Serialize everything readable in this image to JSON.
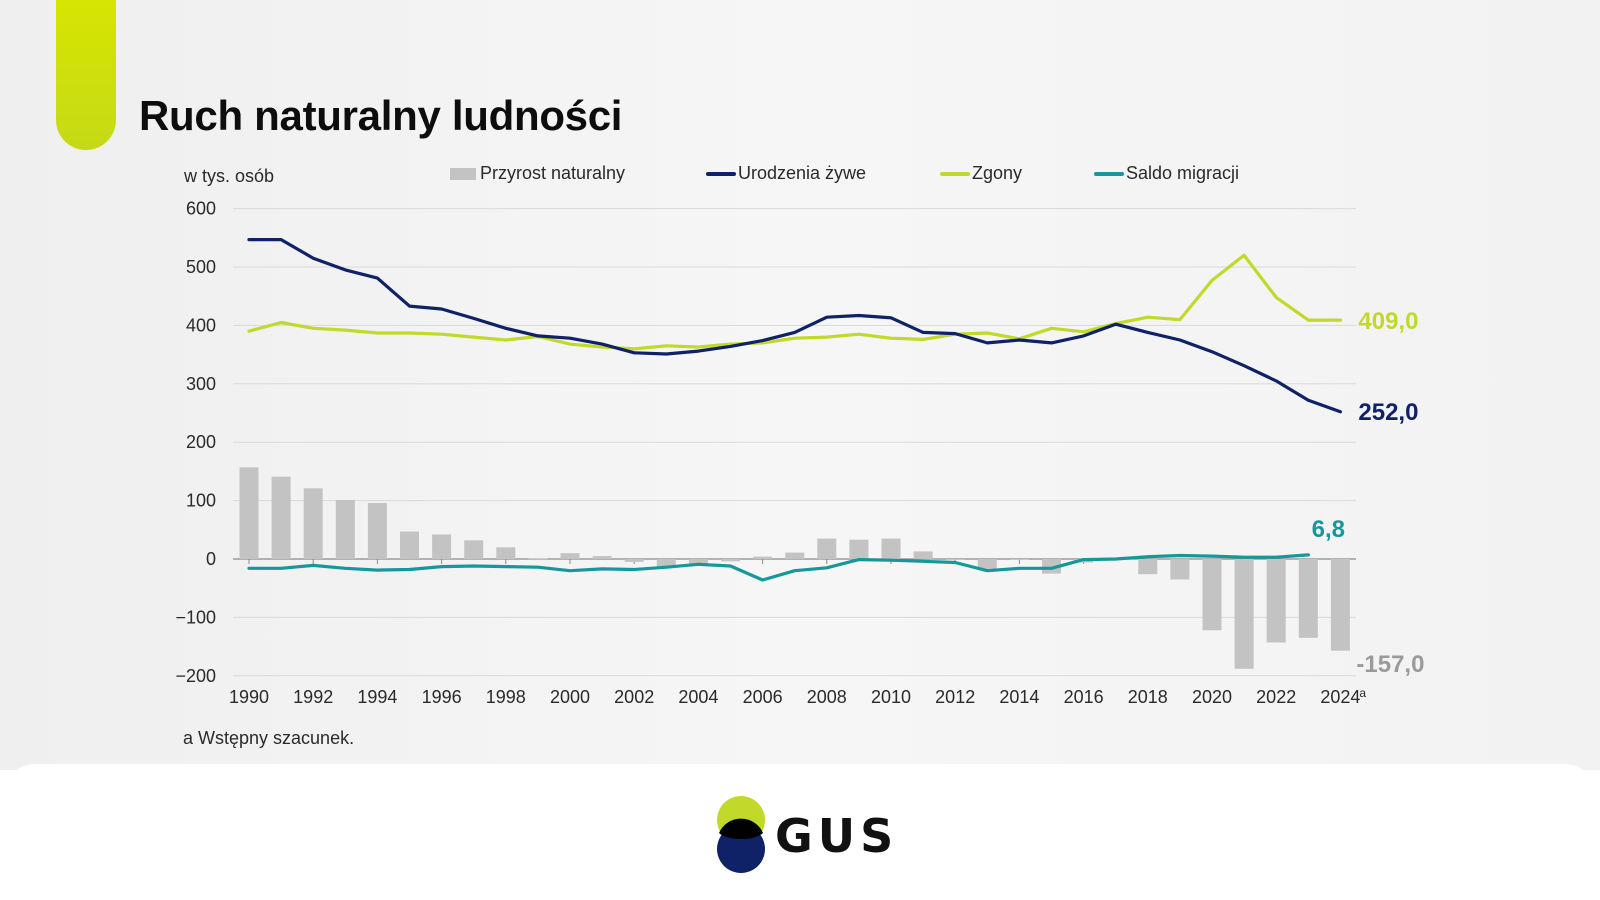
{
  "title": "Ruch naturalny ludności",
  "colors": {
    "accent": "#cddf0c",
    "births": "#0f2167",
    "deaths": "#c2d82a",
    "migration": "#17979c",
    "increase": "#c3c3c3",
    "grid": "#d9d9d9"
  },
  "footnote": "a Wstępny szacunek.",
  "logo": {
    "text": "GUS"
  },
  "chart_data": {
    "type": "bar+line",
    "ylabel": "w tys. osób",
    "ylim": [
      -200,
      600
    ],
    "yticks": [
      600,
      500,
      400,
      300,
      200,
      100,
      0,
      -100,
      -200
    ],
    "years": [
      1990,
      1991,
      1992,
      1993,
      1994,
      1995,
      1996,
      1997,
      1998,
      1999,
      2000,
      2001,
      2002,
      2003,
      2004,
      2005,
      2006,
      2007,
      2008,
      2009,
      2010,
      2011,
      2012,
      2013,
      2014,
      2015,
      2016,
      2017,
      2018,
      2019,
      2020,
      2021,
      2022,
      2023,
      2024
    ],
    "xtick_labels": [
      "1990",
      "1992",
      "1994",
      "1996",
      "1998",
      "2000",
      "2002",
      "2004",
      "2006",
      "2008",
      "2010",
      "2012",
      "2014",
      "2016",
      "2018",
      "2020",
      "2022",
      "2024"
    ],
    "last_tick_superscript": "a",
    "legend": {
      "increase": "Przyrost naturalny",
      "births": "Urodzenia żywe",
      "deaths": "Zgony",
      "migration": "Saldo migracji"
    },
    "series": [
      {
        "key": "increase",
        "name": "Przyrost naturalny",
        "type": "bar",
        "values": [
          157,
          141,
          121,
          101,
          96,
          47,
          42,
          32,
          20,
          1,
          10,
          5,
          -5,
          -14,
          -8,
          -4,
          4,
          11,
          35,
          33,
          35,
          13,
          -1,
          -17,
          -1,
          -25,
          -6,
          0,
          -26,
          -35,
          -122,
          -188,
          -143,
          -135,
          -157
        ]
      },
      {
        "key": "births",
        "name": "Urodzenia żywe",
        "type": "line",
        "values": [
          547,
          547,
          515,
          495,
          481,
          433,
          428,
          412,
          395,
          382,
          378,
          368,
          353,
          351,
          356,
          364,
          374,
          388,
          414,
          417,
          413,
          388,
          386,
          370,
          375,
          370,
          382,
          402,
          388,
          375,
          355,
          331,
          305,
          272,
          252
        ]
      },
      {
        "key": "deaths",
        "name": "Zgony",
        "type": "line",
        "values": [
          390,
          405,
          395,
          392,
          387,
          387,
          385,
          380,
          375,
          381,
          368,
          363,
          360,
          365,
          363,
          368,
          370,
          378,
          380,
          385,
          378,
          376,
          385,
          387,
          377,
          395,
          389,
          403,
          414,
          410,
          477,
          520,
          448,
          409,
          409
        ]
      },
      {
        "key": "migration",
        "name": "Saldo migracji",
        "type": "line",
        "end_index": 33,
        "values": [
          -16,
          -16,
          -11,
          -16,
          -19,
          -18,
          -13,
          -12,
          -13,
          -14,
          -20,
          -17,
          -18,
          -14,
          -9,
          -12,
          -36,
          -20,
          -15,
          -1,
          -2,
          -4,
          -6,
          -20,
          -16,
          -16,
          -1,
          0,
          4,
          6,
          5,
          3,
          3,
          7
        ]
      }
    ],
    "end_labels": {
      "deaths": "409,0",
      "births": "252,0",
      "migration": "6,8",
      "increase": "-157,0"
    }
  }
}
